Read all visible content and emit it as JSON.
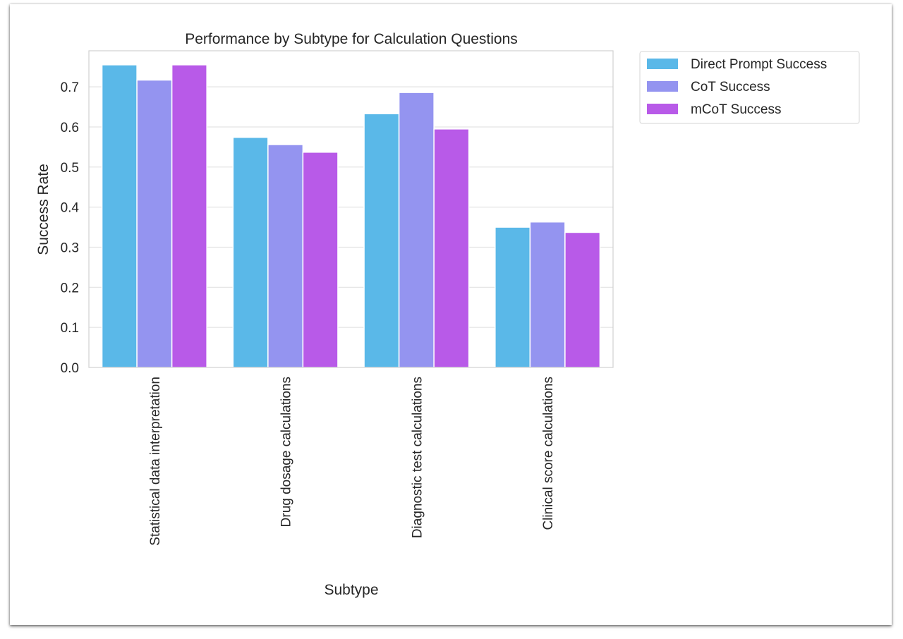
{
  "chart_data": {
    "type": "bar",
    "title": "Performance by Subtype for Calculation Questions",
    "xlabel": "Subtype",
    "ylabel": "Success Rate",
    "ylim": [
      0,
      0.79
    ],
    "yticks": [
      "0.0",
      "0.1",
      "0.2",
      "0.3",
      "0.4",
      "0.5",
      "0.6",
      "0.7"
    ],
    "grid": true,
    "legend_position": "outside-top-right",
    "categories": [
      "Statistical data interpretation",
      "Drug dosage calculations",
      "Diagnostic test calculations",
      "Clinical score calculations"
    ],
    "series": [
      {
        "name": "Direct Prompt Success",
        "color": "#5ab8e8",
        "values": [
          0.755,
          0.574,
          0.633,
          0.35
        ]
      },
      {
        "name": "CoT Success",
        "color": "#9494f0",
        "values": [
          0.717,
          0.556,
          0.686,
          0.363
        ]
      },
      {
        "name": "mCoT Success",
        "color": "#b85ae8",
        "values": [
          0.755,
          0.537,
          0.595,
          0.337
        ]
      }
    ]
  }
}
